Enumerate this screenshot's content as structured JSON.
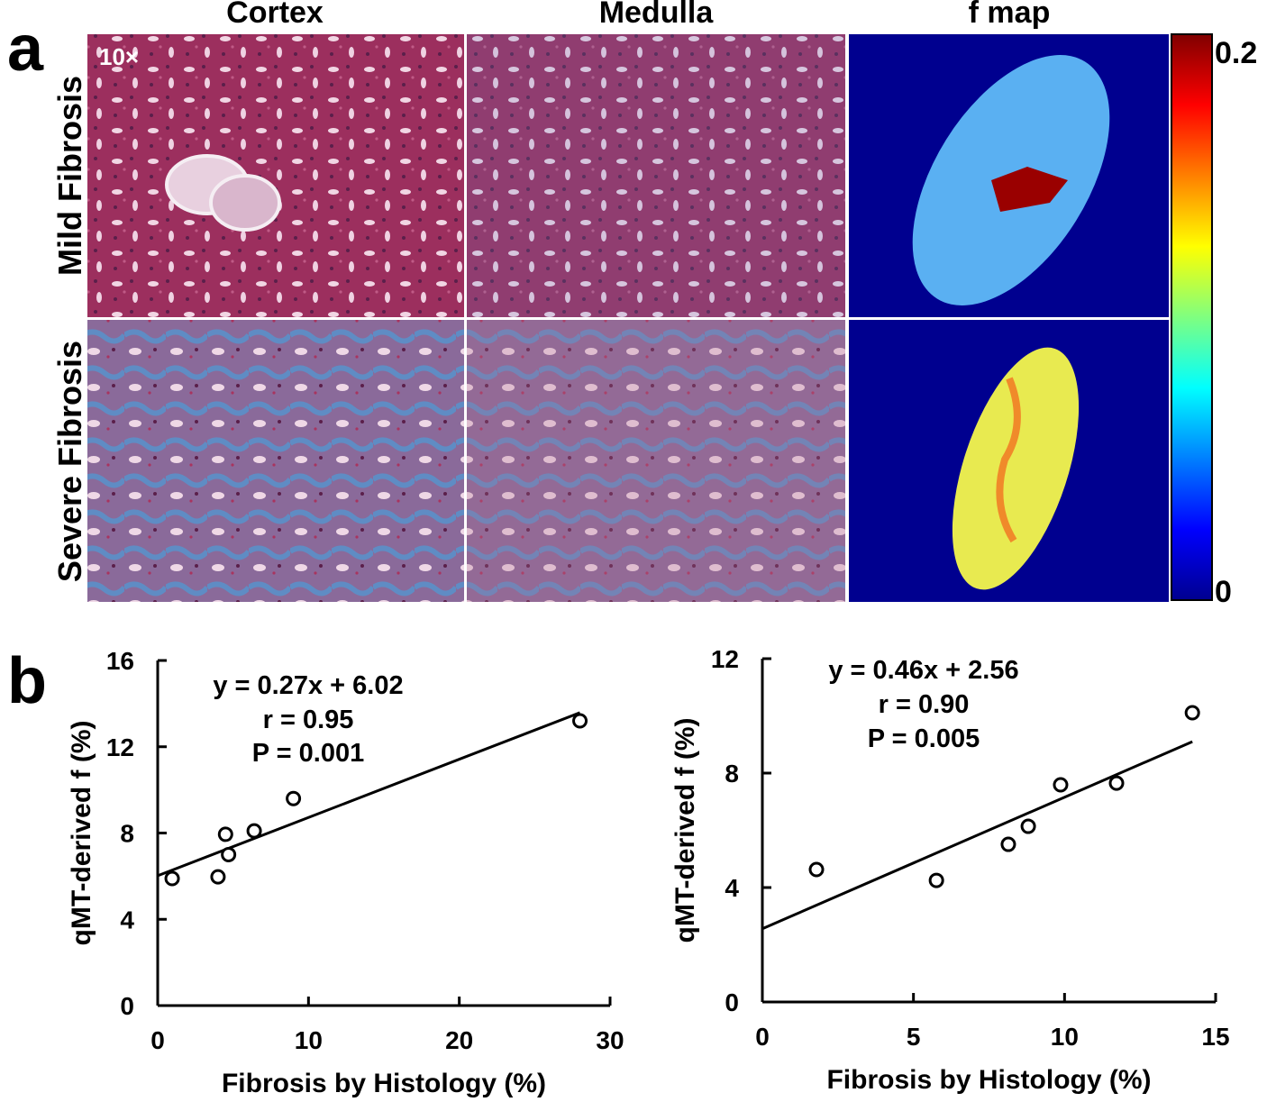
{
  "panel_labels": [
    "a",
    "b"
  ],
  "panel_a": {
    "columns": [
      "Cortex",
      "Medulla",
      "f map"
    ],
    "rows": [
      "Mild Fibrosis",
      "Severe Fibrosis"
    ],
    "magnification": "10×",
    "colorbar": {
      "clim": [
        0,
        0.2
      ],
      "ticks": [
        0.2,
        0
      ]
    }
  },
  "chart_data": [
    {
      "type": "scatter",
      "x": [
        0.96,
        4.0,
        4.5,
        4.7,
        6.4,
        9.0,
        28.0
      ],
      "values": [
        5.89,
        5.97,
        7.94,
        7.0,
        8.1,
        9.6,
        13.2
      ],
      "color": "#000000",
      "xlim": [
        0,
        30
      ],
      "xticks": [
        0,
        10,
        20,
        30
      ],
      "ylim": [
        0,
        16
      ],
      "yticks": [
        0,
        4,
        8,
        12,
        16
      ],
      "xlabel": "Fibrosis by Histology (%)",
      "ylabel": "qMT-derived f (%)",
      "annotations": [
        "y = 0.27x + 6.02",
        "r = 0.95",
        "P = 0.001"
      ],
      "fit": {
        "x": [
          0,
          28.0
        ],
        "y": [
          6.02,
          13.58
        ]
      }
    },
    {
      "type": "scatter",
      "x": [
        1.79,
        5.76,
        8.14,
        8.8,
        9.87,
        11.72,
        14.23
      ],
      "values": [
        4.63,
        4.25,
        5.51,
        6.14,
        7.59,
        7.65,
        10.11
      ],
      "color": "#000000",
      "xlim": [
        0,
        15
      ],
      "xticks": [
        0,
        5,
        10,
        15
      ],
      "ylim": [
        0,
        12
      ],
      "yticks": [
        0,
        4,
        8,
        12
      ],
      "xlabel": "Fibrosis by Histology (%)",
      "ylabel": "qMT-derived f (%)",
      "annotations": [
        "y = 0.46x + 2.56",
        "r =  0.90",
        "P = 0.005"
      ],
      "fit": {
        "x": [
          0,
          14.23
        ],
        "y": [
          2.56,
          9.1
        ]
      }
    }
  ]
}
